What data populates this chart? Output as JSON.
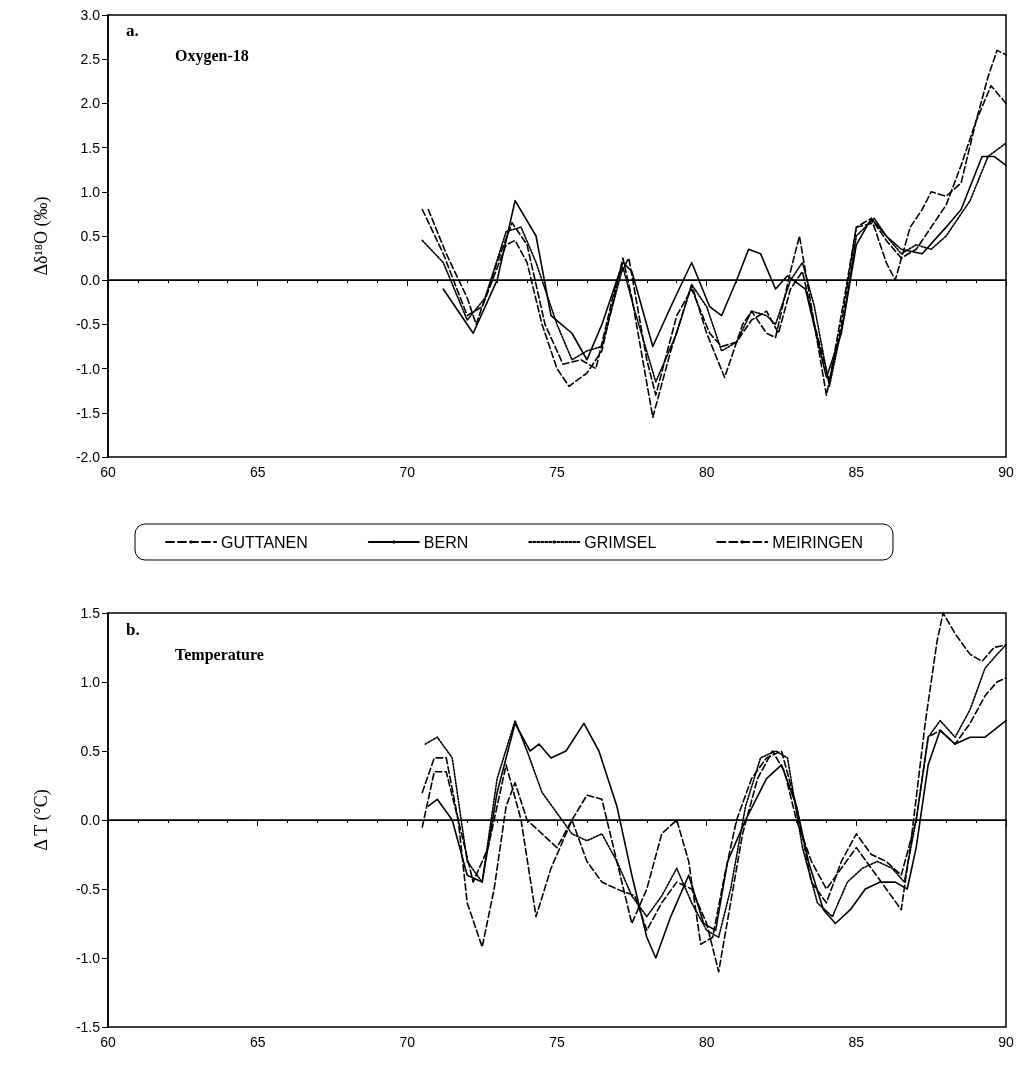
{
  "chart_data": [
    {
      "type": "line",
      "title": "Oxygen-18",
      "annotations": [
        "a."
      ],
      "ylabel": "Δδ¹⁸O (‰)",
      "xlim": [
        60,
        90
      ],
      "xticks": [
        60,
        65,
        70,
        75,
        80,
        85,
        90
      ],
      "ylim": [
        -2,
        3
      ],
      "yticks": [
        {
          "value": -2,
          "label": "-2.0"
        },
        {
          "value": -1.5,
          "label": "-1.5"
        },
        {
          "value": -1,
          "label": "-1.0"
        },
        {
          "value": -0.5,
          "label": "-0.5"
        },
        {
          "value": 0,
          "label": "0.0"
        },
        {
          "value": 0.5,
          "label": "0.5"
        },
        {
          "value": 1,
          "label": "1.0"
        },
        {
          "value": 1.5,
          "label": "1.5"
        },
        {
          "value": 2,
          "label": "2.0"
        },
        {
          "value": 2.5,
          "label": "2.5"
        },
        {
          "value": 3,
          "label": "3.0"
        }
      ],
      "grid": false,
      "legend": "bottom",
      "marker": "none",
      "ref_lines": [
        {
          "axis": "y",
          "value": 0,
          "label": null,
          "color": "#000000"
        }
      ],
      "series": [
        {
          "name": "GUTTANEN",
          "color": "#000000",
          "line_style": "dashed",
          "x": [
            70.5,
            71.2,
            72,
            72.5,
            73.3,
            73.6,
            74,
            74.5,
            75,
            75.4,
            76,
            76.5,
            77.2,
            77.5,
            78.2,
            78.8,
            79.5,
            80,
            80.6,
            81.2,
            81.5,
            82,
            82.3,
            82.8,
            83.1,
            83.5,
            84,
            84.5,
            85,
            85.5,
            86,
            86.3,
            86.8,
            87.2,
            87.5,
            88,
            88.5,
            89,
            89.4,
            89.7,
            90
          ],
          "values": [
            0.8,
            0.3,
            -0.4,
            -0.3,
            0.4,
            0.45,
            0.2,
            -0.5,
            -1,
            -1.2,
            -1.05,
            -0.8,
            0.25,
            -0.2,
            -1.55,
            -0.8,
            -0.05,
            -0.6,
            -1.1,
            -0.5,
            -0.35,
            -0.6,
            -0.65,
            0.1,
            0.5,
            -0.3,
            -1.3,
            -0.5,
            0.6,
            0.7,
            0.2,
            0,
            0.6,
            0.8,
            1,
            0.95,
            1.1,
            1.8,
            2.3,
            2.6,
            2.55
          ]
        },
        {
          "name": "BERN",
          "color": "#000000",
          "line_style": "solid",
          "x": [
            71.2,
            72.2,
            73,
            73.6,
            74.3,
            74.8,
            75.5,
            76,
            76.5,
            77.2,
            77.5,
            78.2,
            78.8,
            79.5,
            80.1,
            80.5,
            81,
            81.4,
            81.8,
            82.3,
            82.7,
            83.3,
            84,
            84.5,
            85,
            85.5,
            86,
            86.5,
            87.2,
            88,
            88.5,
            89.2,
            89.6,
            90
          ],
          "values": [
            -0.1,
            -0.6,
            0,
            0.9,
            0.5,
            -0.4,
            -0.6,
            -0.9,
            -0.5,
            0.2,
            0.1,
            -0.75,
            -0.3,
            0.2,
            -0.3,
            -0.4,
            0,
            0.35,
            0.3,
            -0.1,
            0.05,
            -0.1,
            -1.1,
            -0.6,
            0.4,
            0.7,
            0.5,
            0.35,
            0.3,
            0.6,
            0.8,
            1.4,
            1.4,
            1.3
          ]
        },
        {
          "name": "GRIMSEL",
          "color": "#000000",
          "line_style": "dotted",
          "x": [
            70.5,
            71.2,
            72,
            72.6,
            73.3,
            73.8,
            74.3,
            75,
            75.5,
            76,
            76.5,
            77.2,
            77.6,
            78.3,
            79,
            79.5,
            80,
            80.5,
            81,
            81.5,
            82,
            82.3,
            82.8,
            83.2,
            83.6,
            84.1,
            84.6,
            85,
            85.6,
            86,
            86.5,
            87,
            87.5,
            88,
            88.8,
            89.4,
            90
          ],
          "values": [
            0.45,
            0.2,
            -0.45,
            -0.2,
            0.55,
            0.6,
            0.2,
            -0.5,
            -0.9,
            -0.8,
            -0.75,
            0.15,
            -0.35,
            -1.15,
            -0.6,
            -0.05,
            -0.3,
            -0.8,
            -0.7,
            -0.35,
            -0.4,
            -0.5,
            0,
            0.2,
            -0.3,
            -1.2,
            -0.4,
            0.5,
            0.7,
            0.5,
            0.3,
            0.4,
            0.35,
            0.5,
            0.9,
            1.4,
            1.55
          ]
        },
        {
          "name": "MEIRINGEN",
          "color": "#000000",
          "line_style": "dashed",
          "x": [
            70.7,
            71.3,
            72,
            72.3,
            73,
            73.5,
            74,
            74.6,
            75.2,
            75.8,
            76.3,
            77,
            77.4,
            78,
            78.3,
            79,
            79.5,
            80.1,
            80.5,
            81,
            81.5,
            82,
            82.4,
            82.8,
            83.2,
            83.6,
            84.1,
            84.6,
            85,
            85.6,
            86,
            86.5,
            87,
            87.5,
            88,
            88.5,
            89,
            89.5,
            90
          ],
          "values": [
            0.8,
            0.3,
            -0.2,
            -0.5,
            0.2,
            0.65,
            0.4,
            -0.5,
            -0.95,
            -0.9,
            -1,
            0,
            0.25,
            -0.9,
            -1.3,
            -0.4,
            -0.1,
            -0.6,
            -0.75,
            -0.7,
            -0.45,
            -0.35,
            -0.6,
            -0.1,
            0.1,
            -0.5,
            -1.15,
            -0.2,
            0.6,
            0.65,
            0.45,
            0.25,
            0.35,
            0.6,
            0.85,
            1.3,
            1.8,
            2.2,
            2
          ]
        }
      ]
    },
    {
      "type": "line",
      "title": "Temperature",
      "annotations": [
        "b."
      ],
      "ylabel": "Δ T (°C)",
      "xlim": [
        60,
        90
      ],
      "xticks": [
        60,
        65,
        70,
        75,
        80,
        85,
        90
      ],
      "ylim": [
        -1.5,
        1.5
      ],
      "yticks": [
        {
          "value": -1.5,
          "label": "-1.5"
        },
        {
          "value": -1,
          "label": "-1.0"
        },
        {
          "value": -0.5,
          "label": "-0.5"
        },
        {
          "value": 0,
          "label": "0.0"
        },
        {
          "value": 0.5,
          "label": "0.5"
        },
        {
          "value": 1,
          "label": "1.0"
        },
        {
          "value": 1.5,
          "label": "1.5"
        }
      ],
      "grid": false,
      "legend": false,
      "marker": "none",
      "ref_lines": [
        {
          "axis": "y",
          "value": 0,
          "label": null,
          "color": "#000000"
        }
      ],
      "series": [
        {
          "color": "#000000",
          "line_style": "dashed",
          "x": [
            70.5,
            70.9,
            71.3,
            71.7,
            72.2,
            72.7,
            73.3,
            73.8,
            74.3,
            74.8,
            75.5,
            76,
            76.5,
            77,
            77.6,
            78,
            78.5,
            79,
            79.5,
            80,
            80.4,
            80.8,
            81.2,
            81.7,
            82.2,
            82.6,
            83,
            83.5,
            84,
            84.5,
            85,
            85.5,
            86,
            86.5,
            86.8,
            87.3,
            87.7,
            87.9,
            88.3,
            88.8,
            89.2,
            89.6,
            90
          ],
          "values": [
            0.2,
            0.45,
            0.45,
            0,
            -0.45,
            -0.2,
            0.4,
            0,
            -0.7,
            -0.35,
            0,
            -0.3,
            -0.45,
            -0.5,
            -0.55,
            -0.8,
            -0.6,
            -0.45,
            -0.5,
            -0.75,
            -1.1,
            -0.6,
            -0.1,
            0.3,
            0.5,
            0.35,
            0,
            -0.3,
            -0.5,
            -0.35,
            -0.2,
            -0.35,
            -0.5,
            -0.65,
            -0.2,
            0.7,
            1.3,
            1.5,
            1.35,
            1.2,
            1.15,
            1.25,
            1.27
          ]
        },
        {
          "color": "#000000",
          "line_style": "solid",
          "x": [
            70.7,
            71,
            71.5,
            72,
            72.5,
            73,
            73.6,
            74.1,
            74.4,
            74.8,
            75.3,
            75.9,
            76.4,
            77,
            77.5,
            78,
            78.3,
            78.8,
            79.4,
            79.9,
            80.3,
            80.7,
            81.3,
            82,
            82.5,
            83,
            83.4,
            83.9,
            84.3,
            84.8,
            85.3,
            85.8,
            86.3,
            86.7,
            87,
            87.4,
            87.8,
            88.3,
            88.8,
            89.3,
            90
          ],
          "values": [
            0.1,
            0.15,
            0,
            -0.4,
            -0.45,
            0.2,
            0.7,
            0.5,
            0.55,
            0.45,
            0.5,
            0.7,
            0.5,
            0.1,
            -0.4,
            -0.85,
            -1,
            -0.7,
            -0.4,
            -0.75,
            -0.8,
            -0.3,
            0,
            0.3,
            0.4,
            0.1,
            -0.3,
            -0.65,
            -0.75,
            -0.65,
            -0.5,
            -0.45,
            -0.45,
            -0.5,
            -0.2,
            0.4,
            0.65,
            0.55,
            0.6,
            0.6,
            0.72
          ]
        },
        {
          "color": "#000000",
          "line_style": "dotted",
          "x": [
            70.6,
            71,
            71.5,
            72,
            72.5,
            73,
            73.6,
            74,
            74.5,
            75,
            75.5,
            76,
            76.5,
            77,
            77.5,
            78,
            78.5,
            79,
            79.5,
            80,
            80.4,
            80.8,
            81.3,
            81.8,
            82.3,
            82.7,
            83.2,
            83.7,
            84.2,
            84.7,
            85.2,
            85.7,
            86.2,
            86.6,
            87,
            87.4,
            87.8,
            88.3,
            88.8,
            89.3,
            89.7,
            90
          ],
          "values": [
            0.55,
            0.6,
            0.45,
            -0.3,
            -0.45,
            0.3,
            0.72,
            0.5,
            0.2,
            0.05,
            -0.1,
            -0.15,
            -0.1,
            -0.3,
            -0.55,
            -0.7,
            -0.55,
            -0.35,
            -0.6,
            -0.8,
            -0.85,
            -0.5,
            0.1,
            0.45,
            0.5,
            0.45,
            -0.2,
            -0.6,
            -0.7,
            -0.45,
            -0.35,
            -0.3,
            -0.35,
            -0.45,
            0,
            0.6,
            0.72,
            0.6,
            0.8,
            1.1,
            1.2,
            1.27
          ]
        },
        {
          "color": "#000000",
          "line_style": "dashed",
          "x": [
            70.5,
            70.9,
            71.3,
            71.7,
            72,
            72.5,
            72.9,
            73.3,
            73.6,
            74,
            74.5,
            75,
            75.5,
            76,
            76.5,
            77,
            77.5,
            78,
            78.5,
            79,
            79.4,
            79.8,
            80.2,
            80.6,
            81,
            81.5,
            82,
            82.5,
            83,
            83.5,
            84,
            84.5,
            85,
            85.5,
            86,
            86.5,
            87,
            87.4,
            87.8,
            88.3,
            88.8,
            89.3,
            89.7,
            90
          ],
          "values": [
            -0.05,
            0.35,
            0.35,
            0,
            -0.6,
            -0.92,
            -0.5,
            0.1,
            0.27,
            0,
            -0.1,
            -0.2,
            0,
            0.18,
            0.15,
            -0.3,
            -0.75,
            -0.5,
            -0.1,
            0,
            -0.3,
            -0.9,
            -0.85,
            -0.4,
            0,
            0.3,
            0.45,
            0.5,
            0.1,
            -0.45,
            -0.6,
            -0.3,
            -0.1,
            -0.25,
            -0.3,
            -0.4,
            0,
            0.6,
            0.65,
            0.55,
            0.7,
            0.9,
            1,
            1.03
          ]
        }
      ]
    }
  ]
}
